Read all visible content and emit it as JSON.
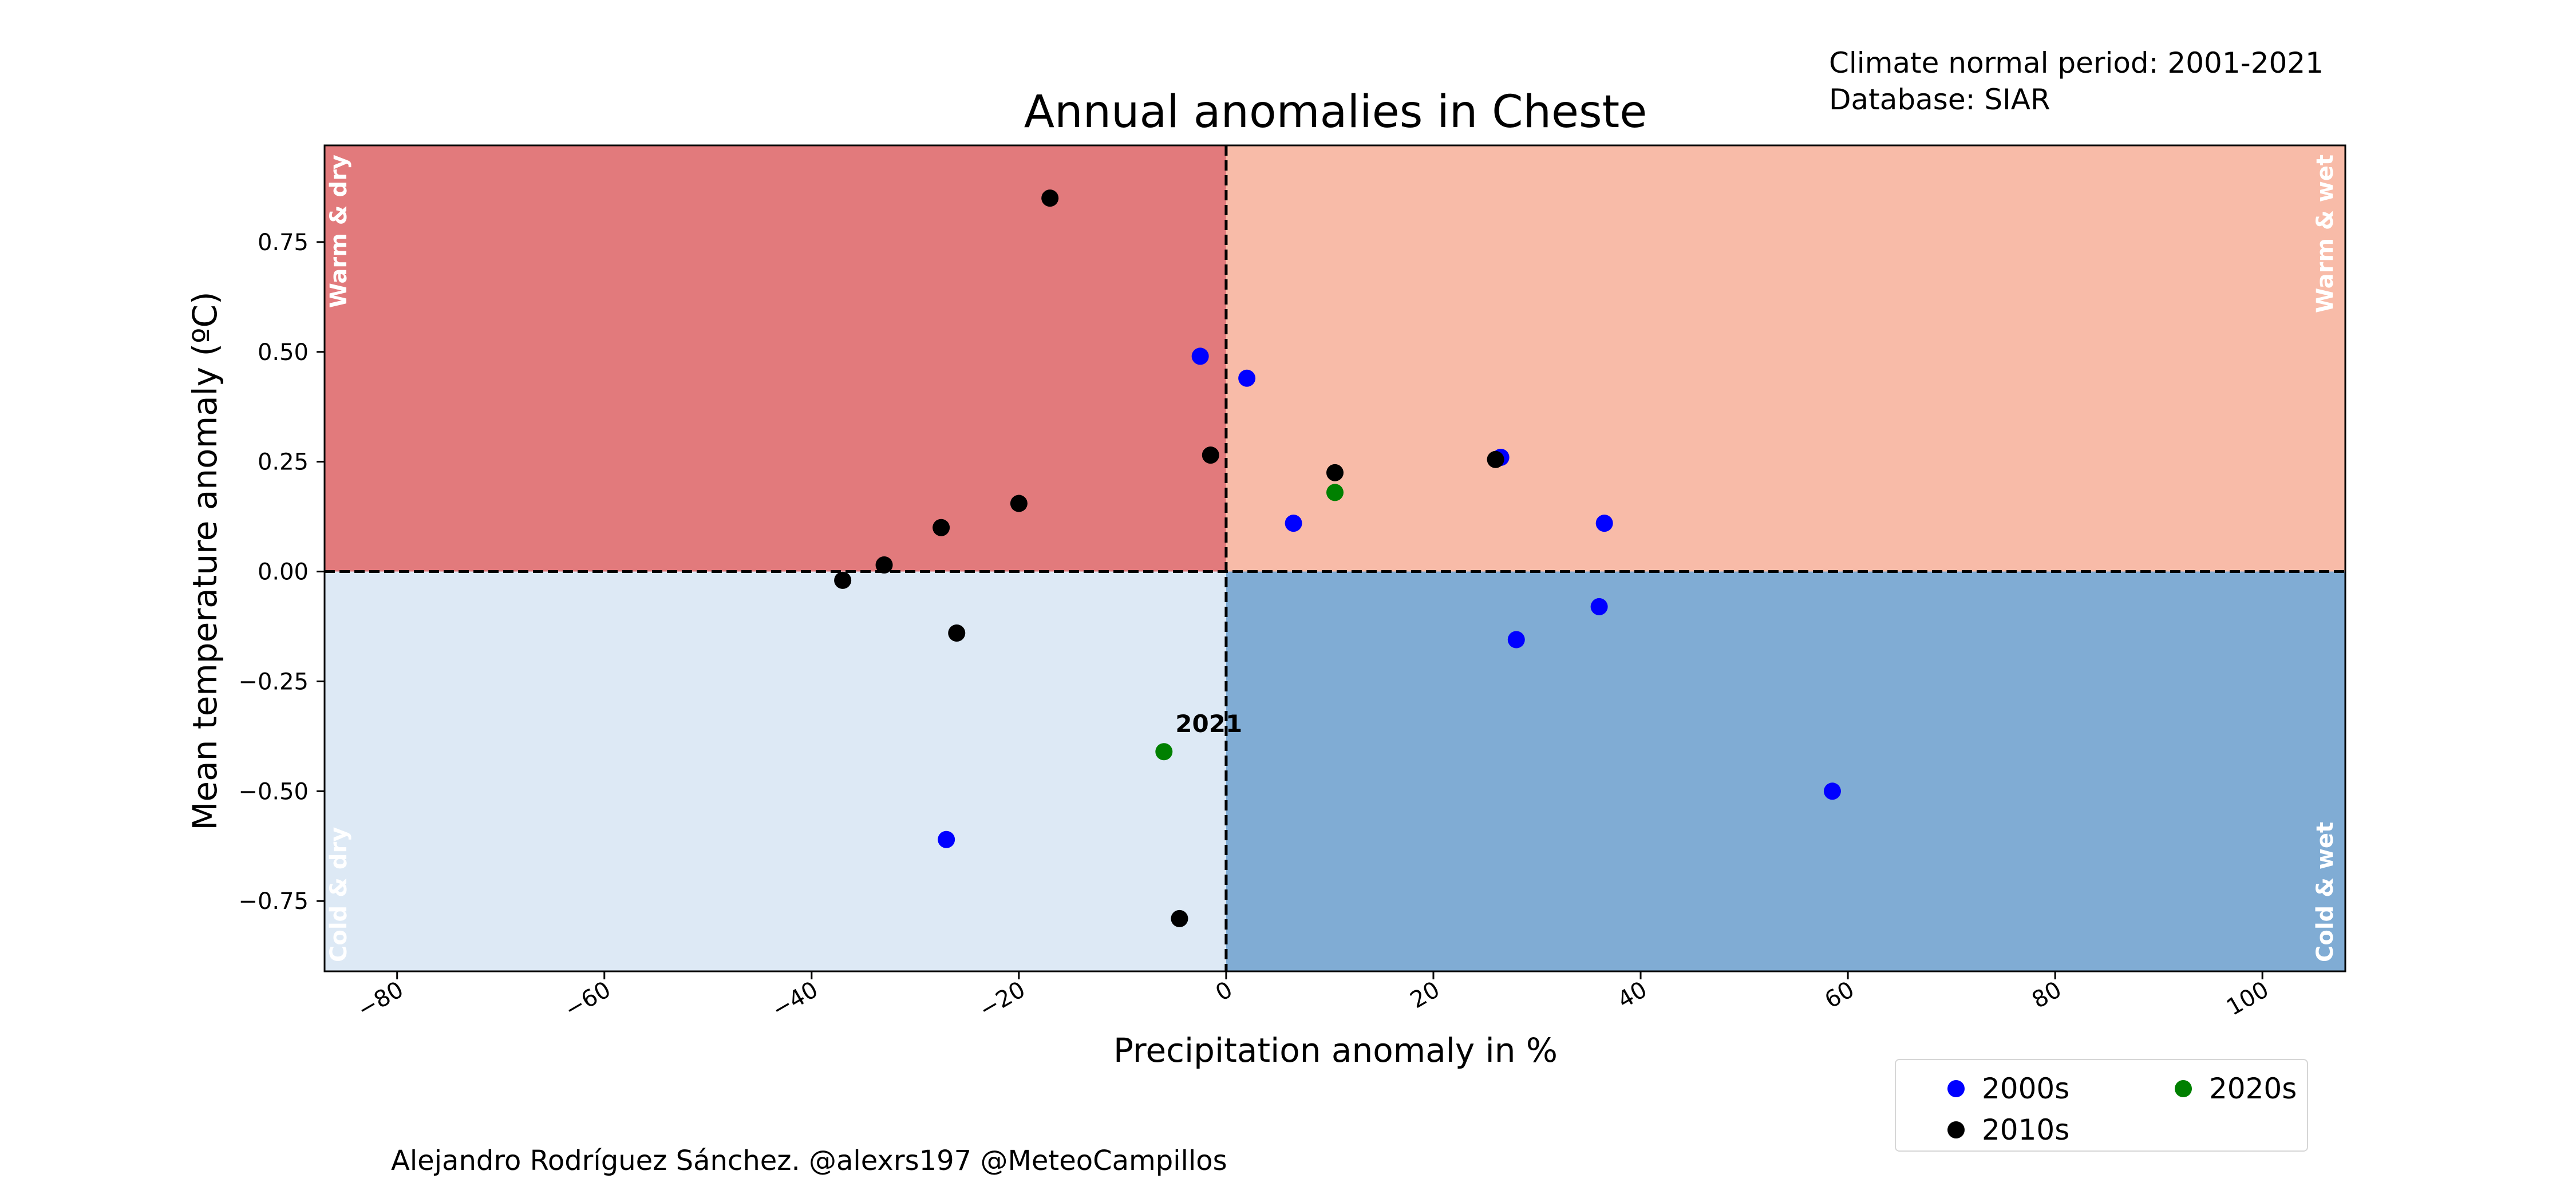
{
  "header": {
    "climate_period": "Climate normal period: 2001-2021",
    "database": "Database: SIAR"
  },
  "credit": "Alejandro Rodríguez Sánchez. @alexrs197 @MeteoCampillos",
  "colors": {
    "warm_dry": "#e27a7c",
    "warm_wet": "#f8bba8",
    "cold_dry": "#dde9f5",
    "cold_wet": "#80acd4",
    "2000s": "#0000ff",
    "2010s": "#000000",
    "2020s": "#008000"
  },
  "chart_data": {
    "type": "scatter",
    "title": "Annual anomalies in Cheste",
    "xlabel": "Precipitation anomaly in %",
    "ylabel": "Mean temperature anomaly (ºC)",
    "xlim": [
      -87,
      108
    ],
    "ylim": [
      -0.91,
      0.97
    ],
    "xticks": [
      -80,
      -60,
      -40,
      -20,
      0,
      20,
      40,
      60,
      80,
      100
    ],
    "xtick_labels": [
      "−80",
      "−60",
      "−40",
      "−20",
      "0",
      "20",
      "40",
      "60",
      "80",
      "100"
    ],
    "yticks": [
      -0.75,
      -0.5,
      -0.25,
      0.0,
      0.25,
      0.5,
      0.75
    ],
    "ytick_labels": [
      "−0.75",
      "−0.50",
      "−0.25",
      "0.00",
      "0.25",
      "0.50",
      "0.75"
    ],
    "grid": false,
    "reference_lines": {
      "x": 0,
      "y": 0
    },
    "quadrants": [
      {
        "name": "warm-dry",
        "label": "Warm & dry",
        "color_key": "warm_dry"
      },
      {
        "name": "warm-wet",
        "label": "Warm & wet",
        "color_key": "warm_wet"
      },
      {
        "name": "cold-dry",
        "label": "Cold & dry",
        "color_key": "cold_dry"
      },
      {
        "name": "cold-wet",
        "label": "Cold & wet",
        "color_key": "cold_wet"
      }
    ],
    "legend_position": "below-right",
    "series": [
      {
        "name": "2000s",
        "color": "#0000ff",
        "points": [
          [
            -2.5,
            0.49
          ],
          [
            2.0,
            0.44
          ],
          [
            6.5,
            0.11
          ],
          [
            26.5,
            0.26
          ],
          [
            36.5,
            0.11
          ],
          [
            36.0,
            -0.08
          ],
          [
            28.0,
            -0.155
          ],
          [
            58.5,
            -0.5
          ],
          [
            -27.0,
            -0.61
          ]
        ]
      },
      {
        "name": "2010s",
        "color": "#000000",
        "points": [
          [
            -17.0,
            0.85
          ],
          [
            -1.5,
            0.265
          ],
          [
            10.5,
            0.225
          ],
          [
            26.0,
            0.255
          ],
          [
            -20.0,
            0.155
          ],
          [
            -27.5,
            0.1
          ],
          [
            -33.0,
            0.015
          ],
          [
            -37.0,
            -0.02
          ],
          [
            -26.0,
            -0.14
          ],
          [
            -4.5,
            -0.79
          ]
        ]
      },
      {
        "name": "2020s",
        "color": "#008000",
        "points": [
          [
            10.5,
            0.18
          ],
          [
            -6.0,
            -0.41
          ]
        ]
      }
    ],
    "annotations": [
      {
        "text": "2021",
        "x": -6.0,
        "y": -0.41
      }
    ]
  }
}
